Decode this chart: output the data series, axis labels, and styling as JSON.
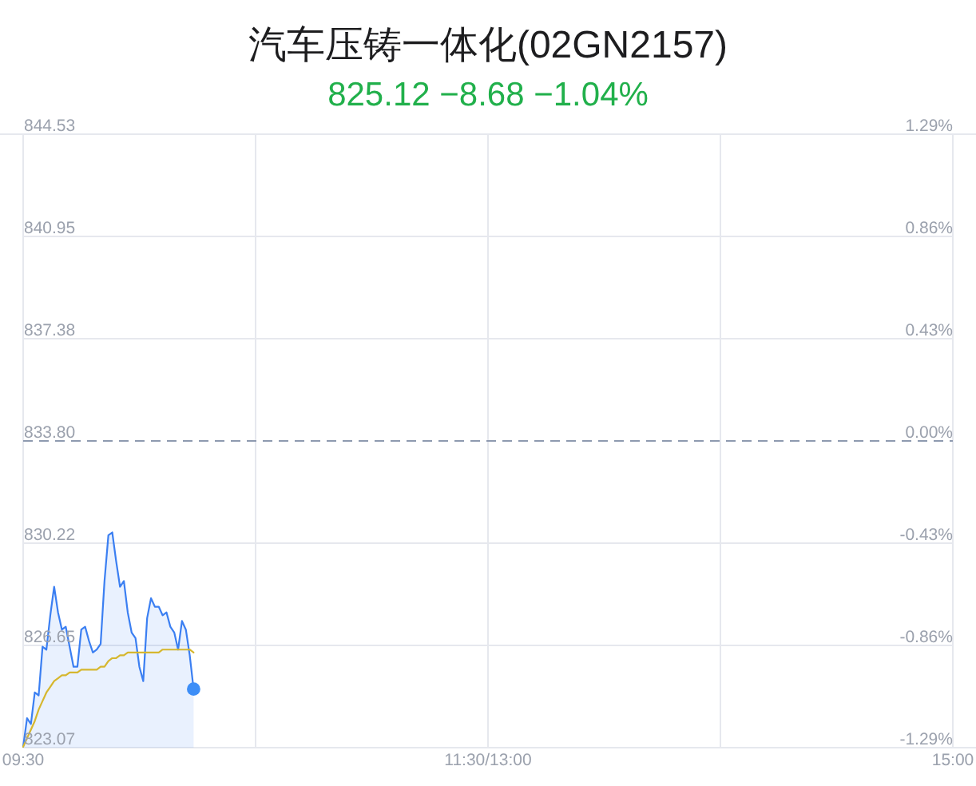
{
  "chart_data": {
    "type": "area",
    "title": "汽车压铸一体化(02GN2157)",
    "subtitle": "825.12 −8.68 −1.04%",
    "categories": [
      "09:30",
      null,
      null,
      null,
      null,
      null,
      null,
      null,
      null,
      null,
      null,
      null,
      null,
      null,
      null,
      null,
      null,
      null,
      null,
      null,
      null,
      null,
      null,
      null,
      null,
      null,
      null,
      null,
      null,
      null,
      null,
      null,
      null,
      null,
      null,
      null,
      null,
      null,
      null,
      null,
      null,
      null,
      null,
      null,
      null,
      null,
      null,
      null,
      null,
      null,
      null,
      null,
      null,
      null,
      null,
      null,
      null,
      null,
      null,
      null,
      null,
      null,
      null,
      null,
      null,
      null,
      null,
      null,
      null,
      null,
      null,
      null,
      null,
      null,
      null,
      null,
      null,
      null,
      null,
      null,
      null,
      null,
      null,
      null,
      null,
      null,
      null,
      null,
      null,
      null,
      null,
      null,
      null,
      null,
      null,
      null,
      null,
      null,
      null,
      null,
      null,
      null,
      null,
      null,
      null,
      null,
      null,
      null,
      null,
      null,
      null,
      null,
      null,
      null,
      null,
      null,
      null,
      null,
      null,
      null,
      "11:30/13:00",
      null,
      null,
      null,
      null,
      null,
      null,
      null,
      null,
      null,
      null,
      null,
      null,
      null,
      null,
      null,
      null,
      null,
      null,
      null,
      null,
      null,
      null,
      null,
      null,
      null,
      null,
      null,
      null,
      null,
      null,
      null,
      null,
      null,
      null,
      null,
      null,
      null,
      null,
      null,
      null,
      null,
      null,
      null,
      null,
      null,
      null,
      null,
      null,
      null,
      null,
      null,
      null,
      null,
      null,
      null,
      null,
      null,
      null,
      null,
      null,
      null,
      null,
      null,
      null,
      null,
      null,
      null,
      null,
      null,
      null,
      null,
      null,
      null,
      null,
      null,
      null,
      null,
      null,
      null,
      null,
      null,
      null,
      null,
      null,
      null,
      null,
      null,
      null,
      null,
      null,
      null,
      null,
      null,
      null,
      null,
      null,
      null,
      null,
      null,
      null,
      null,
      null,
      null,
      null,
      null,
      null,
      null,
      null,
      null,
      null,
      null,
      null,
      null,
      null,
      null,
      null,
      null,
      null,
      null,
      "15:00"
    ],
    "series": [
      {
        "color": "#3b7ff2",
        "values": [
          823.1,
          824.1,
          823.9,
          825.0,
          824.9,
          826.6,
          826.5,
          827.7,
          828.7,
          827.8,
          827.2,
          827.3,
          826.6,
          825.9,
          825.9,
          827.2,
          827.3,
          826.8,
          826.4,
          826.5,
          826.7,
          828.9,
          830.5,
          830.6,
          829.6,
          828.7,
          828.9,
          827.8,
          827.1,
          826.9,
          825.9,
          825.4,
          827.6,
          828.3,
          828.0,
          828.0,
          827.7,
          827.8,
          827.3,
          827.1,
          826.5,
          827.5,
          827.2,
          826.3,
          825.12,
          null,
          null,
          null,
          null,
          null,
          null,
          null,
          null,
          null,
          null,
          null,
          null,
          null,
          null,
          null,
          null,
          null,
          null,
          null,
          null,
          null,
          null,
          null,
          null,
          null,
          null,
          null,
          null,
          null,
          null,
          null,
          null,
          null,
          null,
          null,
          null,
          null,
          null,
          null,
          null,
          null,
          null,
          null,
          null,
          null,
          null,
          null,
          null,
          null,
          null,
          null,
          null,
          null,
          null,
          null,
          null,
          null,
          null,
          null,
          null,
          null,
          null,
          null,
          null,
          null,
          null,
          null,
          null,
          null,
          null,
          null,
          null,
          null,
          null,
          null,
          null,
          null,
          null,
          null,
          null,
          null,
          null,
          null,
          null,
          null,
          null,
          null,
          null,
          null,
          null,
          null,
          null,
          null,
          null,
          null,
          null,
          null,
          null,
          null,
          null,
          null,
          null,
          null,
          null,
          null,
          null,
          null,
          null,
          null,
          null,
          null,
          null,
          null,
          null,
          null,
          null,
          null,
          null,
          null,
          null,
          null,
          null,
          null,
          null,
          null,
          null,
          null,
          null,
          null,
          null,
          null,
          null,
          null,
          null,
          null,
          null,
          null,
          null,
          null,
          null,
          null,
          null,
          null,
          null,
          null,
          null,
          null,
          null,
          null,
          null,
          null,
          null,
          null,
          null,
          null,
          null,
          null,
          null,
          null,
          null,
          null,
          null,
          null,
          null,
          null,
          null,
          null,
          null,
          null,
          null,
          null,
          null,
          null,
          null,
          null,
          null,
          null,
          null,
          null,
          null,
          null,
          null,
          null,
          null,
          null,
          null,
          null,
          null,
          null,
          null,
          null,
          null,
          null,
          null,
          null,
          null
        ]
      },
      {
        "type": "line",
        "color": "#d6b72e",
        "values": [
          823.1,
          823.4,
          823.7,
          824.0,
          824.4,
          824.7,
          825.0,
          825.2,
          825.4,
          825.5,
          825.6,
          825.6,
          825.7,
          825.7,
          825.7,
          825.8,
          825.8,
          825.8,
          825.8,
          825.8,
          825.9,
          825.9,
          826.1,
          826.2,
          826.2,
          826.3,
          826.3,
          826.4,
          826.4,
          826.4,
          826.4,
          826.4,
          826.4,
          826.4,
          826.4,
          826.4,
          826.5,
          826.5,
          826.5,
          826.5,
          826.5,
          826.5,
          826.5,
          826.5,
          826.4,
          null,
          null,
          null,
          null,
          null,
          null,
          null,
          null,
          null,
          null,
          null,
          null,
          null,
          null,
          null,
          null,
          null,
          null,
          null,
          null,
          null,
          null,
          null,
          null,
          null,
          null,
          null,
          null,
          null,
          null,
          null,
          null,
          null,
          null,
          null,
          null,
          null,
          null,
          null,
          null,
          null,
          null,
          null,
          null,
          null,
          null,
          null,
          null,
          null,
          null,
          null,
          null,
          null,
          null,
          null,
          null,
          null,
          null,
          null,
          null,
          null,
          null,
          null,
          null,
          null,
          null,
          null,
          null,
          null,
          null,
          null,
          null,
          null,
          null,
          null,
          null,
          null,
          null,
          null,
          null,
          null,
          null,
          null,
          null,
          null,
          null,
          null,
          null,
          null,
          null,
          null,
          null,
          null,
          null,
          null,
          null,
          null,
          null,
          null,
          null,
          null,
          null,
          null,
          null,
          null,
          null,
          null,
          null,
          null,
          null,
          null,
          null,
          null,
          null,
          null,
          null,
          null,
          null,
          null,
          null,
          null,
          null,
          null,
          null,
          null,
          null,
          null,
          null,
          null,
          null,
          null,
          null,
          null,
          null,
          null,
          null,
          null,
          null,
          null,
          null,
          null,
          null,
          null,
          null,
          null,
          null,
          null,
          null,
          null,
          null,
          null,
          null,
          null,
          null,
          null,
          null,
          null,
          null,
          null,
          null,
          null,
          null,
          null,
          null,
          null,
          null,
          null,
          null,
          null,
          null,
          null,
          null,
          null,
          null,
          null,
          null,
          null,
          null,
          null,
          null,
          null,
          null,
          null,
          null,
          null,
          null,
          null,
          null,
          null,
          null,
          null,
          null,
          null,
          null,
          null,
          null
        ]
      },
      {
        "type": "scatter",
        "color": "#3d8ef7",
        "marker": "circle",
        "values": [
          null,
          null,
          null,
          null,
          null,
          null,
          null,
          null,
          null,
          null,
          null,
          null,
          null,
          null,
          null,
          null,
          null,
          null,
          null,
          null,
          null,
          null,
          null,
          null,
          null,
          null,
          null,
          null,
          null,
          null,
          null,
          null,
          null,
          null,
          null,
          null,
          null,
          null,
          null,
          null,
          null,
          null,
          null,
          null,
          825.12,
          null,
          null,
          null,
          null,
          null,
          null,
          null,
          null,
          null,
          null,
          null,
          null,
          null,
          null,
          null,
          null,
          null,
          null,
          null,
          null,
          null,
          null,
          null,
          null,
          null,
          null,
          null,
          null,
          null,
          null,
          null,
          null,
          null,
          null,
          null,
          null,
          null,
          null,
          null,
          null,
          null,
          null,
          null,
          null,
          null,
          null,
          null,
          null,
          null,
          null,
          null,
          null,
          null,
          null,
          null,
          null,
          null,
          null,
          null,
          null,
          null,
          null,
          null,
          null,
          null,
          null,
          null,
          null,
          null,
          null,
          null,
          null,
          null,
          null,
          null,
          null,
          null,
          null,
          null,
          null,
          null,
          null,
          null,
          null,
          null,
          null,
          null,
          null,
          null,
          null,
          null,
          null,
          null,
          null,
          null,
          null,
          null,
          null,
          null,
          null,
          null,
          null,
          null,
          null,
          null,
          null,
          null,
          null,
          null,
          null,
          null,
          null,
          null,
          null,
          null,
          null,
          null,
          null,
          null,
          null,
          null,
          null,
          null,
          null,
          null,
          null,
          null,
          null,
          null,
          null,
          null,
          null,
          null,
          null,
          null,
          null,
          null,
          null,
          null,
          null,
          null,
          null,
          null,
          null,
          null,
          null,
          null,
          null,
          null,
          null,
          null,
          null,
          null,
          null,
          null,
          null,
          null,
          null,
          null,
          null,
          null,
          null,
          null,
          null,
          null,
          null,
          null,
          null,
          null,
          null,
          null,
          null,
          null,
          null,
          null,
          null,
          null,
          null,
          null,
          null,
          null,
          null,
          null,
          null,
          null,
          null,
          null,
          null,
          null,
          null,
          null,
          null,
          null,
          null,
          null,
          null
        ]
      }
    ],
    "ylim": [
      823.07,
      844.53
    ],
    "yticks": [
      823.07,
      826.65,
      830.22,
      {
        "value": 833.8,
        "label": "833.80"
      },
      837.38,
      840.95,
      844.53
    ],
    "y2lim": [
      -1.29,
      1.29
    ],
    "y2ticks": [
      {
        "value": -1.29,
        "label": "-1.29%"
      },
      {
        "value": -0.86,
        "label": "-0.86%"
      },
      {
        "value": -0.43,
        "label": "-0.43%"
      },
      {
        "value": 0,
        "label": "0.00%"
      },
      {
        "value": 0.43,
        "label": "0.43%"
      },
      {
        "value": 0.86,
        "label": "0.86%"
      },
      {
        "value": 1.29,
        "label": "1.29%"
      }
    ],
    "grid": true,
    "ref_lines": [
      {
        "axis": "y",
        "value": 833.8,
        "color": "#8e9ab0",
        "line_style": "dashed"
      }
    ]
  }
}
